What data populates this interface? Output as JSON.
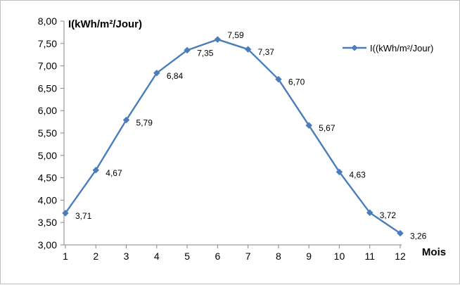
{
  "chart_data": {
    "type": "line",
    "x": [
      1,
      2,
      3,
      4,
      5,
      6,
      7,
      8,
      9,
      10,
      11,
      12
    ],
    "x_tick_labels": [
      "1",
      "2",
      "3",
      "4",
      "5",
      "6",
      "7",
      "8",
      "9",
      "10",
      "11",
      "12"
    ],
    "series": [
      {
        "name": "I((kWh/m²/Jour)",
        "values": [
          3.71,
          4.67,
          5.79,
          6.84,
          7.35,
          7.59,
          7.37,
          6.7,
          5.67,
          4.63,
          3.72,
          3.26
        ],
        "labels": [
          "3,71",
          "4,67",
          "5,79",
          "6,84",
          "7,35",
          "7,59",
          "7,37",
          "6,70",
          "5,67",
          "4,63",
          "3,72",
          "3,26"
        ]
      }
    ],
    "ylabel": "I(kWh/m²/Jour)",
    "xlabel": "Mois",
    "ylim": [
      3.0,
      8.0
    ],
    "y_ticks": [
      3.0,
      3.5,
      4.0,
      4.5,
      5.0,
      5.5,
      6.0,
      6.5,
      7.0,
      7.5,
      8.0
    ],
    "y_tick_labels": [
      "3,00",
      "3,50",
      "4,00",
      "4,50",
      "5,00",
      "5,50",
      "6,00",
      "6,50",
      "7,00",
      "7,50",
      "8,00"
    ],
    "grid": false,
    "legend_position": "top-right",
    "colors": {
      "line": "#4a7ebb",
      "marker": "#4a7ebb",
      "axis": "#868686"
    }
  }
}
